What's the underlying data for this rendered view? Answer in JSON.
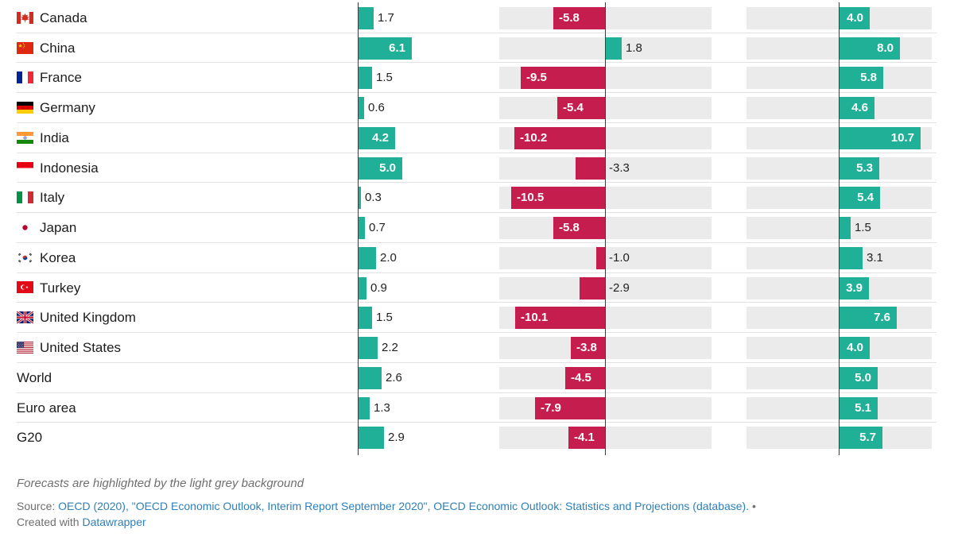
{
  "chart_data": {
    "type": "bar",
    "variant": "split-bar-table-3-columns",
    "orientation": "horizontal",
    "title": "",
    "legend": "none",
    "categories": [
      "Canada",
      "China",
      "France",
      "Germany",
      "India",
      "Indonesia",
      "Italy",
      "Japan",
      "Korea",
      "Turkey",
      "United Kingdom",
      "United States",
      "World",
      "Euro area",
      "G20"
    ],
    "series": [
      {
        "name": "column-1",
        "forecast": false,
        "values": [
          1.7,
          6.1,
          1.5,
          0.6,
          4.2,
          5.0,
          0.3,
          0.7,
          2.0,
          0.9,
          1.5,
          2.2,
          2.6,
          1.3,
          2.9
        ]
      },
      {
        "name": "column-2-forecast",
        "forecast": true,
        "values": [
          -5.8,
          1.8,
          -9.5,
          -5.4,
          -10.2,
          -3.3,
          -10.5,
          -5.8,
          -1.0,
          -2.9,
          -10.1,
          -3.8,
          -4.5,
          -7.9,
          -4.1
        ]
      },
      {
        "name": "column-3-forecast",
        "forecast": true,
        "values": [
          4.0,
          8.0,
          5.8,
          4.6,
          10.7,
          5.3,
          5.4,
          1.5,
          3.1,
          3.9,
          7.6,
          4.0,
          5.0,
          5.1,
          5.7
        ]
      }
    ],
    "rows": [
      {
        "label": "Canada",
        "flag": "ca",
        "values": [
          1.7,
          -5.8,
          4.0
        ]
      },
      {
        "label": "China",
        "flag": "cn",
        "values": [
          6.1,
          1.8,
          8.0
        ]
      },
      {
        "label": "France",
        "flag": "fr",
        "values": [
          1.5,
          -9.5,
          5.8
        ]
      },
      {
        "label": "Germany",
        "flag": "de",
        "values": [
          0.6,
          -5.4,
          4.6
        ]
      },
      {
        "label": "India",
        "flag": "in",
        "values": [
          4.2,
          -10.2,
          10.7
        ]
      },
      {
        "label": "Indonesia",
        "flag": "id",
        "values": [
          5.0,
          -3.3,
          5.3
        ]
      },
      {
        "label": "Italy",
        "flag": "it",
        "values": [
          0.3,
          -10.5,
          5.4
        ]
      },
      {
        "label": "Japan",
        "flag": "jp",
        "values": [
          0.7,
          -5.8,
          1.5
        ]
      },
      {
        "label": "Korea",
        "flag": "kr",
        "values": [
          2.0,
          -1.0,
          3.1
        ]
      },
      {
        "label": "Turkey",
        "flag": "tr",
        "values": [
          0.9,
          -2.9,
          3.9
        ]
      },
      {
        "label": "United Kingdom",
        "flag": "gb",
        "values": [
          1.5,
          -10.1,
          7.6
        ]
      },
      {
        "label": "United States",
        "flag": "us",
        "values": [
          2.2,
          -3.8,
          4.0
        ]
      },
      {
        "label": "World",
        "flag": null,
        "values": [
          2.6,
          -4.5,
          5.0
        ]
      },
      {
        "label": "Euro area",
        "flag": null,
        "values": [
          1.3,
          -7.9,
          5.1
        ]
      },
      {
        "label": "G20",
        "flag": null,
        "values": [
          2.9,
          -4.1,
          5.7
        ]
      }
    ],
    "value_format": "one-decimal",
    "colors": {
      "bar_positive": "#20b098",
      "bar_negative": "#c51d4e",
      "forecast_band": "#ebebeb",
      "row_separator": "#e2e2e2",
      "axis_line": "#3d3d3d",
      "value_label_dark": "#222222",
      "value_label_light": "#ffffff",
      "country_label": "#1d1d1d"
    }
  },
  "footer": {
    "note": "Forecasts are highlighted by the light grey background",
    "source_prefix": "Source: ",
    "source_link": "OECD (2020), \"OECD Economic Outlook, Interim Report September 2020\", OECD Economic Outlook: Statistics and Projections (database).",
    "bullet": " •",
    "created_prefix": "Created with ",
    "created_link": "Datawrapper",
    "note_color": "#6f6f6f",
    "link_color": "#2d80ba"
  }
}
